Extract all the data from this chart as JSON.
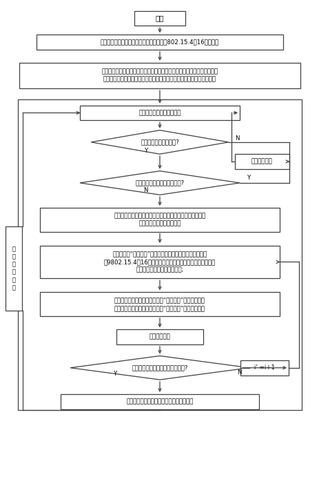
{
  "bg": "#ffffff",
  "edge": "#404040",
  "text_col": "#000000",
  "lw": 0.9,
  "fs": 6.2,
  "start_text": "开始",
  "box1_text": "网关主控制器给每个网关通信模块分配一个802.15.4的16位短地址",
  "box2_text": "路由节点入网时网关分别记录每个路由节点属于哪个通信模块，将一个模块\n下的路由节点分为一个组播组，并建立路由节点的邻居表，计算临时路径",
  "box3_text": "网关主控制器轮询通信模块",
  "d1_text": "某一通信模块拥塞状态?",
  "wait1_text": "等待一个周期",
  "d2_text": "另一通信模块也处于拥塞状态?",
  "box4_text": "控制器利用正常的通信模块组播离开命令，让拥塞模块下的\n路由节点离开当前交换设备",
  "box5_text": "控制器生成“路由发现”命令帧，其中源地址是正常通信模块\n的9802.15.4的16位地址，目的地址是拥塞模块下路由节点的\n组播地址，最大跳数设置为跳;",
  "box6_text": "控制器利用正常的通信模块组播“路由发现”命令，使拥塞\n模块下的路由节点与其建立最优“临时路径”，转发数据。",
  "wait2_text": "等待一个周期",
  "d3_text": "询问原拥塞通信模块是否解除拥塞?",
  "counter_text": "i' =i+1",
  "box7_text": "控制器利用命令帧让节点按原路由转发数据",
  "left_wait_text": "等\n待\n一\n个\n周\n期"
}
